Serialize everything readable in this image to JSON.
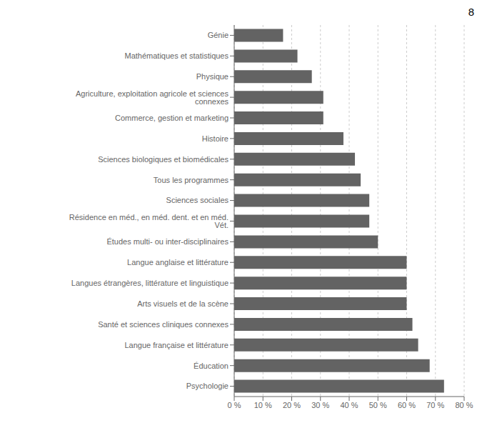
{
  "chart_data": {
    "type": "bar",
    "orientation": "horizontal",
    "categories": [
      "Génie",
      "Mathématiques et statistiques",
      "Physique",
      "Agriculture, exploitation agricole et sciences connexes",
      "Commerce, gestion et marketing",
      "Histoire",
      "Sciences biologiques et biomédicales",
      "Tous les programmes",
      "Sciences sociales",
      "Résidence en méd., en méd. dent. et en méd. Vét.",
      "Études multi- ou inter-disciplinaires",
      "Langue anglaise et littérature",
      "Langues étrangères, littérature et linguistique",
      "Arts visuels et de la scène",
      "Santé et sciences cliniques connexes",
      "Langue française et littérature",
      "Éducation",
      "Psychologie"
    ],
    "values": [
      17,
      22,
      27,
      31,
      31,
      38,
      42,
      44,
      47,
      47,
      50,
      60,
      60,
      60,
      62,
      64,
      68,
      73
    ],
    "color": "#636363",
    "xlim": [
      0,
      80
    ],
    "xticks": [
      {
        "value": 0,
        "label": "0 %"
      },
      {
        "value": 10,
        "label": "10 %"
      },
      {
        "value": 20,
        "label": "20 %"
      },
      {
        "value": 30,
        "label": "30 %"
      },
      {
        "value": 40,
        "label": "40 %"
      },
      {
        "value": 50,
        "label": "50 %"
      },
      {
        "value": 60,
        "label": "60 %"
      },
      {
        "value": 70,
        "label": "70 %"
      },
      {
        "value": 80,
        "label": "80 %"
      }
    ],
    "grid": true,
    "annotations": [
      "8"
    ]
  }
}
